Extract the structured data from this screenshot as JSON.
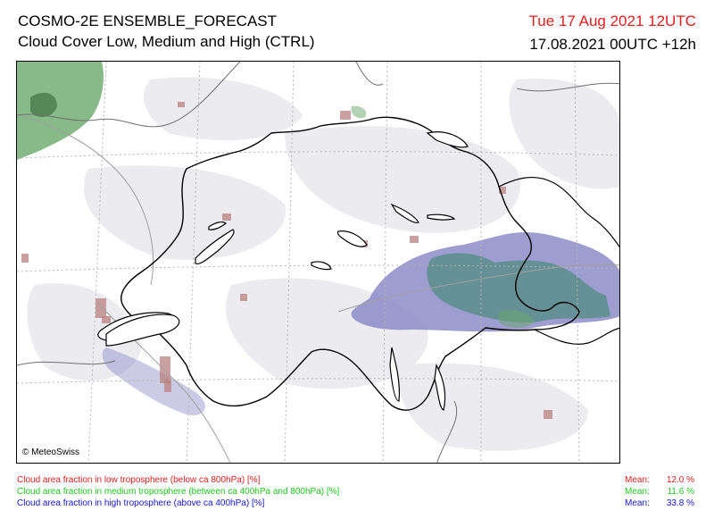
{
  "header": {
    "title": "COSMO-2E ENSEMBLE_FORECAST",
    "subtitle": "Cloud Cover Low, Medium and High (CTRL)",
    "valid_time": "Tue 17 Aug 2021 12UTC",
    "run_info": "17.08.2021 00UTC +12h"
  },
  "map": {
    "copyright": "© MeteoSwiss"
  },
  "legend": [
    {
      "label": "Cloud area fraction in low troposphere (below ca 800hPa) [%]",
      "mean_label": "Mean:",
      "mean_value": "12.0 %",
      "color": "#e0201e"
    },
    {
      "label": "Cloud area fraction in medium troposphere (between ca 400hPa and 800hPa) [%]",
      "mean_label": "Mean:",
      "mean_value": "11.6 %",
      "color": "#1ec81e"
    },
    {
      "label": "Cloud area fraction in high troposphere (above ca 400hPa) [%]",
      "mean_label": "Mean:",
      "mean_value": "33.8 %",
      "color": "#1818d8"
    }
  ],
  "colors": {
    "low_cloud": "#b98080",
    "medium_cloud": "#6aa86a",
    "high_cloud": "#8c8cc8",
    "overlap_cloud": "#5e8f8f",
    "light_cloud": "#ececf0"
  }
}
